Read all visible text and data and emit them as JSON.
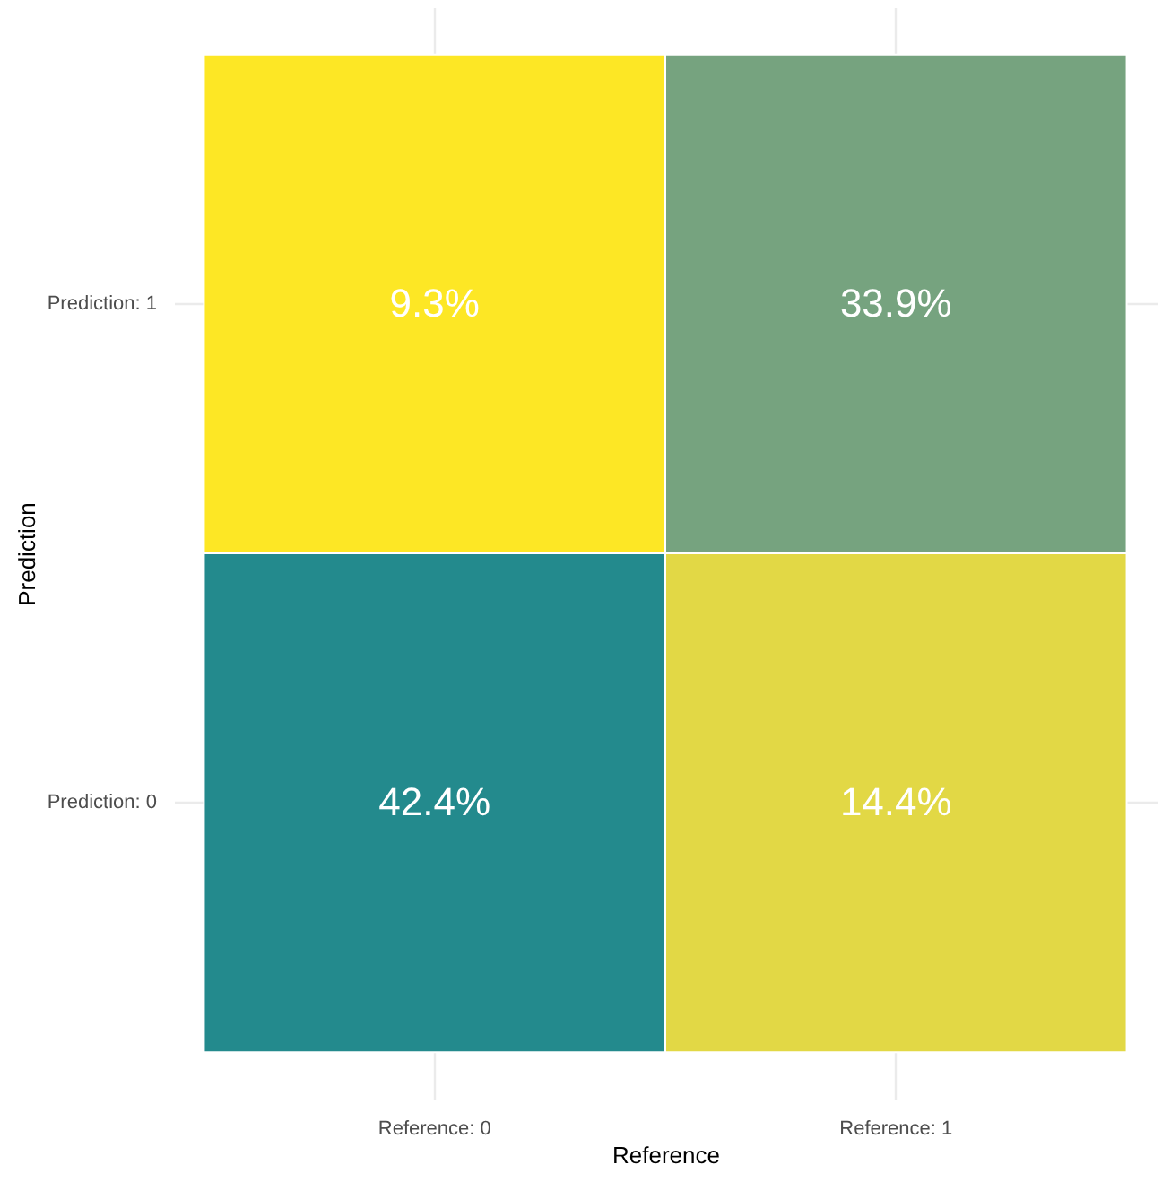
{
  "chart_data": {
    "type": "heatmap",
    "xlabel": "Reference",
    "ylabel": "Prediction",
    "categories": [
      "Reference: 0",
      "Reference: 1"
    ],
    "y_categories": [
      "Prediction: 1",
      "Prediction: 0"
    ],
    "cells": [
      [
        9.3,
        33.9
      ],
      [
        42.4,
        14.4
      ]
    ],
    "cell_labels": [
      [
        "9.3%",
        "33.9%"
      ],
      [
        "42.4%",
        "14.4%"
      ]
    ],
    "colors": [
      [
        "#fde725",
        "#76a37f"
      ],
      [
        "#238a8d",
        "#e2d845"
      ]
    ],
    "grid": true,
    "legend": false
  }
}
